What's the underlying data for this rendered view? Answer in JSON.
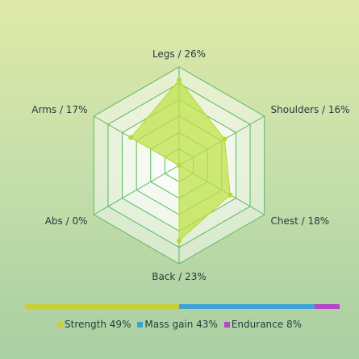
{
  "chart_data": {
    "type": "radar",
    "axes": [
      "Legs / 26%",
      "Shoulders / 16%",
      "Chest / 18%",
      "Back / 23%",
      "Abs / 0%",
      "Arms / 17%"
    ],
    "values": [
      26,
      16,
      18,
      23,
      0,
      17
    ],
    "rmax": 30,
    "rings": 6,
    "grid": true,
    "colors": {
      "fill": "#bfe24a",
      "stroke": "#b4dc2c",
      "grid": "#5cb85c"
    }
  },
  "progress_bar": {
    "segments": [
      {
        "label": "Strength 49%",
        "value": 49,
        "color": "#c8cf3a"
      },
      {
        "label": "Mass gain 43%",
        "value": 43,
        "color": "#3fa2d6"
      },
      {
        "label": "Endurance 8%",
        "value": 8,
        "color": "#b347c9"
      }
    ]
  }
}
